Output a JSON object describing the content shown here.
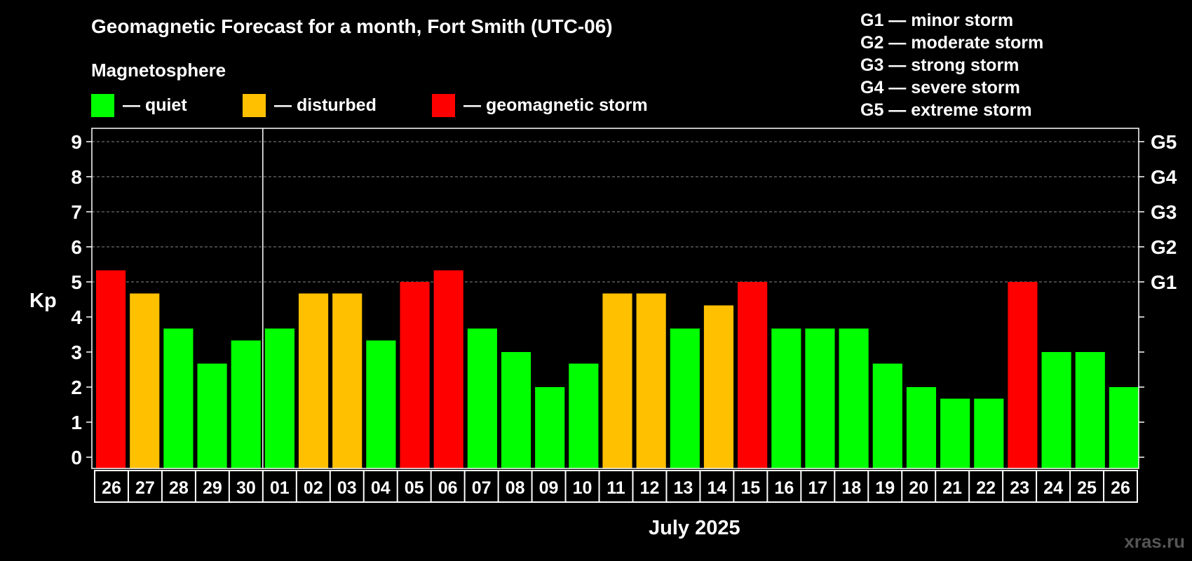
{
  "title": "Geomagnetic Forecast for a month, Fort Smith (UTC-06)",
  "legend": {
    "heading": "Magnetosphere",
    "items": [
      {
        "label": "— quiet",
        "color": "#00ff00"
      },
      {
        "label": "— disturbed",
        "color": "#ffc000"
      },
      {
        "label": "— geomagnetic storm",
        "color": "#ff0000"
      }
    ]
  },
  "g_levels": [
    "G1 — minor storm",
    "G2 — moderate storm",
    "G3 — strong storm",
    "G4 — severe storm",
    "G5 — extreme storm"
  ],
  "month_label": "July 2025",
  "watermark": "xras.ru",
  "chart_data": {
    "type": "bar",
    "ylabel": "Kp",
    "ylim": [
      0,
      9
    ],
    "yticks": [
      0,
      1,
      2,
      3,
      4,
      5,
      6,
      7,
      8,
      9
    ],
    "right_ticks": [
      {
        "value": 5,
        "label": "G1"
      },
      {
        "value": 6,
        "label": "G2"
      },
      {
        "value": 7,
        "label": "G3"
      },
      {
        "value": 8,
        "label": "G4"
      },
      {
        "value": 9,
        "label": "G5"
      }
    ],
    "grid": "dashed horizontal at each integer Kp",
    "month_divider_after_index": 4,
    "categories": [
      "26",
      "27",
      "28",
      "29",
      "30",
      "01",
      "02",
      "03",
      "04",
      "05",
      "06",
      "07",
      "08",
      "09",
      "10",
      "11",
      "12",
      "13",
      "14",
      "15",
      "16",
      "17",
      "18",
      "19",
      "20",
      "21",
      "22",
      "23",
      "24",
      "25",
      "26"
    ],
    "values": [
      5.33,
      4.67,
      3.67,
      2.67,
      3.33,
      3.67,
      4.67,
      4.67,
      3.33,
      5.0,
      5.33,
      3.67,
      3.0,
      2.0,
      2.67,
      4.67,
      4.67,
      3.67,
      4.33,
      5.0,
      3.67,
      3.67,
      3.67,
      2.67,
      2.0,
      1.67,
      1.67,
      5.0,
      3.0,
      3.0,
      2.0
    ],
    "bar_colors": {
      "quiet": "#00ff00",
      "disturbed": "#ffc000",
      "storm": "#ff0000"
    }
  }
}
